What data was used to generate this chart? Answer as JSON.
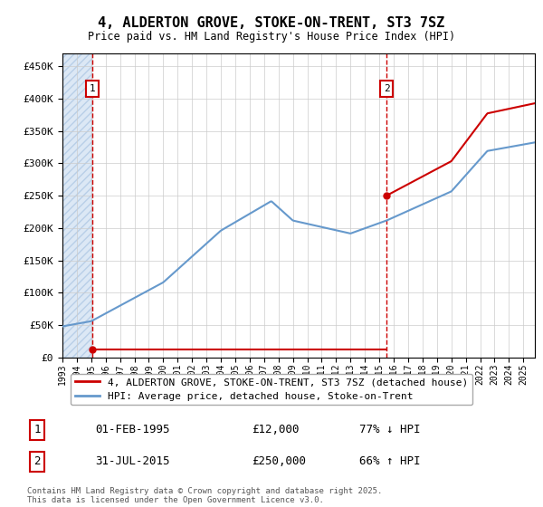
{
  "title": "4, ALDERTON GROVE, STOKE-ON-TRENT, ST3 7SZ",
  "subtitle": "Price paid vs. HM Land Registry's House Price Index (HPI)",
  "sale1_price": 12000,
  "sale1_pct": "77% ↓ HPI",
  "sale1_display": "01-FEB-1995",
  "sale2_price": 250000,
  "sale2_pct": "66% ↑ HPI",
  "sale2_display": "31-JUL-2015",
  "hpi_color": "#6699cc",
  "price_color": "#cc0000",
  "marker_color": "#cc0000",
  "dashed_line_color": "#cc0000",
  "legend_label1": "4, ALDERTON GROVE, STOKE-ON-TRENT, ST3 7SZ (detached house)",
  "legend_label2": "HPI: Average price, detached house, Stoke-on-Trent",
  "footer": "Contains HM Land Registry data © Crown copyright and database right 2025.\nThis data is licensed under the Open Government Licence v3.0.",
  "yticks": [
    0,
    50000,
    100000,
    150000,
    200000,
    250000,
    300000,
    350000,
    400000,
    450000
  ],
  "ylim": [
    0,
    470000
  ],
  "xlim_start": 1993.0,
  "xlim_end": 2025.8
}
